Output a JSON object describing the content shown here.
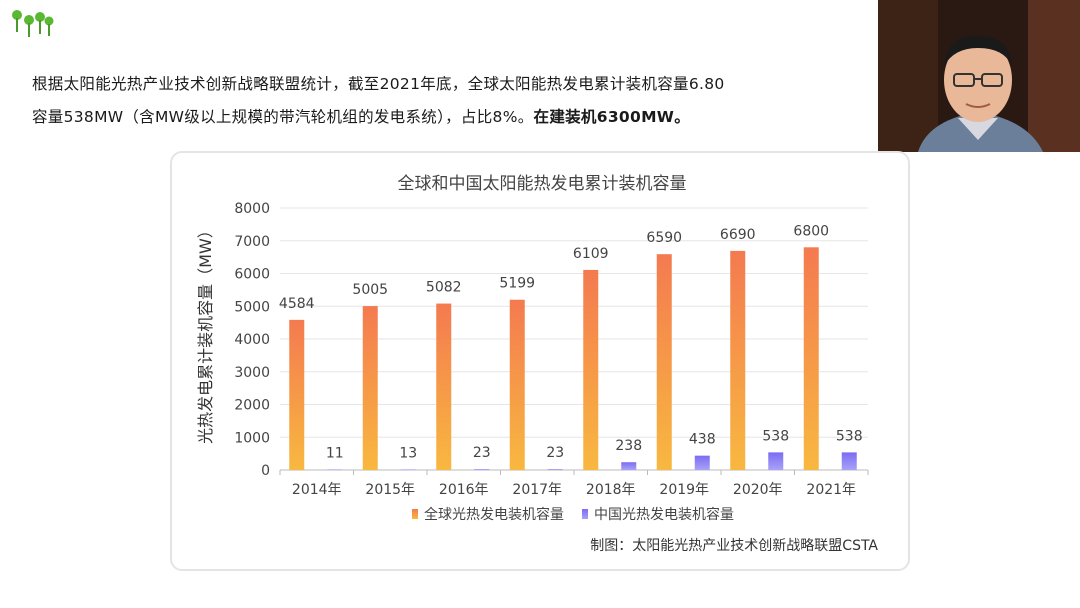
{
  "paragraph": {
    "line1": "根据太阳能光热产业技术创新战略联盟统计，截至2021年底，全球太阳能热发电累计装机容量6.80",
    "line2_normal": "容量538MW（含MW级以上规模的带汽轮机组的发电系统），占比8%。",
    "line2_bold": "在建装机6300MW。"
  },
  "colors": {
    "global_top": "#f47a50",
    "global_bottom": "#f8b840",
    "china_top": "#7b6cf2",
    "china_bottom": "#a9a2f7",
    "grid": "#e6e6e6",
    "axis": "#bbbbbb"
  },
  "chart_data": {
    "type": "bar",
    "title": "全球和中国太阳能热发电累计装机容量",
    "ylabel": "光热发电累计装机容量（MW）",
    "xlabel": "",
    "ylim": [
      0,
      8000
    ],
    "yticks": [
      0,
      1000,
      2000,
      3000,
      4000,
      5000,
      6000,
      7000,
      8000
    ],
    "grid": true,
    "legend_position": "bottom",
    "categories": [
      "2014年",
      "2015年",
      "2016年",
      "2017年",
      "2018年",
      "2019年",
      "2020年",
      "2021年"
    ],
    "series": [
      {
        "name": "全球光热发电装机容量",
        "values": [
          4584,
          5005,
          5082,
          5199,
          6109,
          6590,
          6690,
          6800
        ]
      },
      {
        "name": "中国光热发电装机容量",
        "values": [
          11,
          13,
          23,
          23,
          238,
          438,
          538,
          538
        ]
      }
    ],
    "credit": "制图：太阳能光热产业技术创新战略联盟CSTA"
  }
}
